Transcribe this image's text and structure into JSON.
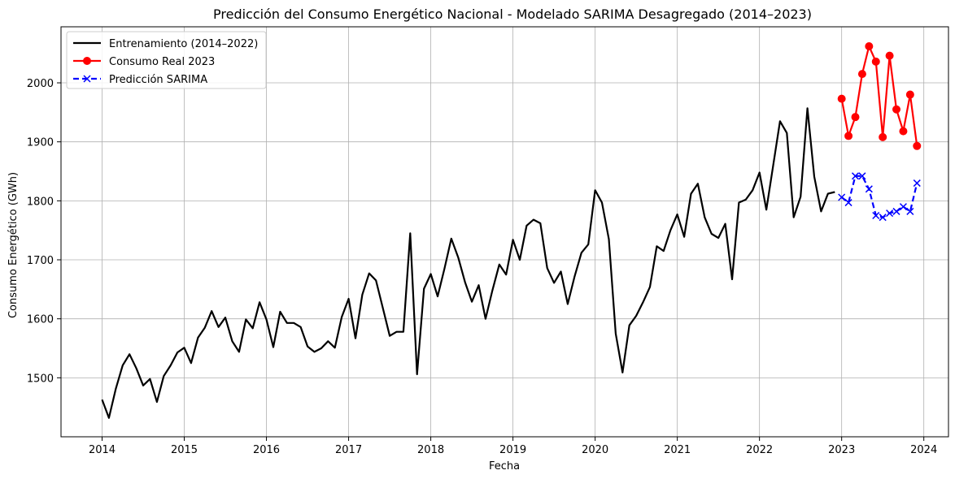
{
  "chart_data": {
    "type": "line",
    "title": "Predicción del Consumo Energético Nacional - Modelado SARIMA Desagregado (2014–2023)",
    "xlabel": "Fecha",
    "ylabel": "Consumo Energético (GWh)",
    "xlim": [
      2013.5,
      2024.3
    ],
    "ylim": [
      1400,
      2095
    ],
    "x_ticks": [
      2014,
      2015,
      2016,
      2017,
      2018,
      2019,
      2020,
      2021,
      2022,
      2023,
      2024
    ],
    "x_tick_labels": [
      "2014",
      "2015",
      "2016",
      "2017",
      "2018",
      "2019",
      "2020",
      "2021",
      "2022",
      "2023",
      "2024"
    ],
    "y_ticks": [
      1500,
      1600,
      1700,
      1800,
      1900,
      2000
    ],
    "y_tick_labels": [
      "1500",
      "1600",
      "1700",
      "1800",
      "1900",
      "2000"
    ],
    "grid": true,
    "legend_position": "top-left",
    "x_start": "2014-01",
    "series": [
      {
        "name": "Entrenamiento (2014–2022)",
        "color": "#000000",
        "marker": "none",
        "line_style": "solid",
        "x": [
          "2014-01",
          "2014-02",
          "2014-03",
          "2014-04",
          "2014-05",
          "2014-06",
          "2014-07",
          "2014-08",
          "2014-09",
          "2014-10",
          "2014-11",
          "2014-12",
          "2015-01",
          "2015-02",
          "2015-03",
          "2015-04",
          "2015-05",
          "2015-06",
          "2015-07",
          "2015-08",
          "2015-09",
          "2015-10",
          "2015-11",
          "2015-12",
          "2016-01",
          "2016-02",
          "2016-03",
          "2016-04",
          "2016-05",
          "2016-06",
          "2016-07",
          "2016-08",
          "2016-09",
          "2016-10",
          "2016-11",
          "2016-12",
          "2017-01",
          "2017-02",
          "2017-03",
          "2017-04",
          "2017-05",
          "2017-06",
          "2017-07",
          "2017-08",
          "2017-09",
          "2017-10",
          "2017-11",
          "2017-12",
          "2018-01",
          "2018-02",
          "2018-03",
          "2018-04",
          "2018-05",
          "2018-06",
          "2018-07",
          "2018-08",
          "2018-09",
          "2018-10",
          "2018-11",
          "2018-12",
          "2019-01",
          "2019-02",
          "2019-03",
          "2019-04",
          "2019-05",
          "2019-06",
          "2019-07",
          "2019-08",
          "2019-09",
          "2019-10",
          "2019-11",
          "2019-12",
          "2020-01",
          "2020-02",
          "2020-03",
          "2020-04",
          "2020-05",
          "2020-06",
          "2020-07",
          "2020-08",
          "2020-09",
          "2020-10",
          "2020-11",
          "2020-12",
          "2021-01",
          "2021-02",
          "2021-03",
          "2021-04",
          "2021-05",
          "2021-06",
          "2021-07",
          "2021-08",
          "2021-09",
          "2021-10",
          "2021-11",
          "2021-12",
          "2022-01",
          "2022-02",
          "2022-03",
          "2022-04",
          "2022-05",
          "2022-06",
          "2022-07",
          "2022-08",
          "2022-09",
          "2022-10",
          "2022-11",
          "2022-12"
        ],
        "values": [
          1463,
          1432,
          1481,
          1521,
          1540,
          1516,
          1487,
          1498,
          1459,
          1503,
          1521,
          1543,
          1551,
          1525,
          1568,
          1585,
          1613,
          1586,
          1602,
          1562,
          1544,
          1599,
          1584,
          1628,
          1599,
          1552,
          1612,
          1593,
          1593,
          1586,
          1553,
          1544,
          1550,
          1562,
          1551,
          1603,
          1634,
          1567,
          1641,
          1677,
          1665,
          1618,
          1571,
          1578,
          1578,
          1745,
          1506,
          1651,
          1676,
          1638,
          1685,
          1736,
          1704,
          1662,
          1629,
          1657,
          1600,
          1648,
          1692,
          1675,
          1734,
          1700,
          1758,
          1768,
          1762,
          1686,
          1661,
          1680,
          1625,
          1672,
          1712,
          1726,
          1818,
          1797,
          1735,
          1575,
          1509,
          1589,
          1605,
          1628,
          1654,
          1723,
          1715,
          1750,
          1777,
          1739,
          1812,
          1829,
          1772,
          1744,
          1737,
          1761,
          1667,
          1797,
          1802,
          1818,
          1848,
          1785,
          1860,
          1935,
          1915,
          1772,
          1807,
          1957,
          1841,
          1782,
          1812,
          1815
        ]
      },
      {
        "name": "Consumo Real 2023",
        "color": "#ff0000",
        "marker": "circle",
        "line_style": "solid",
        "x": [
          "2023-01",
          "2023-02",
          "2023-03",
          "2023-04",
          "2023-05",
          "2023-06",
          "2023-07",
          "2023-08",
          "2023-09",
          "2023-10",
          "2023-11",
          "2023-12"
        ],
        "values": [
          1973,
          1910,
          1942,
          2015,
          2062,
          2036,
          1908,
          2046,
          1955,
          1918,
          1980,
          1893
        ]
      },
      {
        "name": "Predicción SARIMA",
        "color": "#0000ff",
        "marker": "x",
        "line_style": "dashed",
        "x": [
          "2023-01",
          "2023-02",
          "2023-03",
          "2023-04",
          "2023-05",
          "2023-06",
          "2023-07",
          "2023-08",
          "2023-09",
          "2023-10",
          "2023-11",
          "2023-12"
        ],
        "values": [
          1806,
          1797,
          1842,
          1842,
          1820,
          1775,
          1772,
          1779,
          1782,
          1790,
          1782,
          1830
        ]
      }
    ]
  }
}
